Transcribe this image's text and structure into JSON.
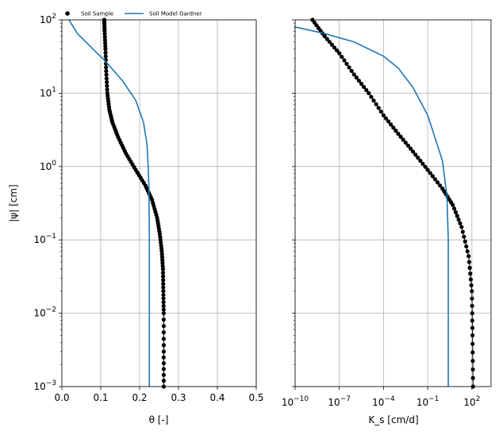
{
  "chart_data": [
    {
      "type": "line",
      "panel": "left",
      "xlabel": "θ [-]",
      "ylabel": "|ψ| [cm]",
      "xscale": "linear",
      "yscale": "log",
      "xlim": [
        0.0,
        0.5
      ],
      "ylim": [
        0.001,
        100
      ],
      "xticks": [
        "0.0",
        "0.1",
        "0.2",
        "0.3",
        "0.4",
        "0.5"
      ],
      "yticks": [
        "10^-3",
        "10^-2",
        "10^-1",
        "10^0",
        "10^1",
        "10^2"
      ],
      "grid": true,
      "legend": {
        "placement": "top, above plot",
        "entries": [
          {
            "label": "Soil Sample",
            "marker": "circle",
            "color": "#000000"
          },
          {
            "label": "Soil Model Gardner",
            "marker": "line",
            "color": "#1f77b4"
          }
        ]
      },
      "series": [
        {
          "name": "Soil Sample",
          "style": "black dots connected",
          "color": "#000000",
          "points": [
            [
              0.262,
              0.001
            ],
            [
              0.262,
              0.003
            ],
            [
              0.262,
              0.01
            ],
            [
              0.261,
              0.02
            ],
            [
              0.26,
              0.04
            ],
            [
              0.257,
              0.07
            ],
            [
              0.252,
              0.12
            ],
            [
              0.245,
              0.2
            ],
            [
              0.232,
              0.35
            ],
            [
              0.215,
              0.55
            ],
            [
              0.19,
              0.9
            ],
            [
              0.165,
              1.5
            ],
            [
              0.145,
              2.5
            ],
            [
              0.13,
              4.0
            ],
            [
              0.122,
              6.0
            ],
            [
              0.117,
              10
            ],
            [
              0.114,
              20
            ],
            [
              0.112,
              40
            ],
            [
              0.11,
              70
            ],
            [
              0.109,
              100
            ]
          ]
        },
        {
          "name": "Soil Model Gardner",
          "style": "line",
          "color": "#1f77b4",
          "points": [
            [
              0.225,
              0.001
            ],
            [
              0.225,
              0.1
            ],
            [
              0.224,
              0.5
            ],
            [
              0.222,
              1.0
            ],
            [
              0.219,
              2.0
            ],
            [
              0.21,
              4.0
            ],
            [
              0.19,
              8.0
            ],
            [
              0.155,
              15
            ],
            [
              0.11,
              28
            ],
            [
              0.07,
              45
            ],
            [
              0.04,
              65
            ],
            [
              0.018,
              100
            ]
          ]
        }
      ]
    },
    {
      "type": "line",
      "panel": "right",
      "xlabel": "K_s [cm/d]",
      "xscale": "log",
      "yscale": "log",
      "xlim": [
        1e-10,
        2000
      ],
      "ylim": [
        0.001,
        100
      ],
      "xticks": [
        "10^-10",
        "10^-7",
        "10^-4",
        "10^-1",
        "10^2"
      ],
      "grid": true,
      "series": [
        {
          "name": "Soil Sample",
          "style": "black dots connected",
          "color": "#000000",
          "points": [
            [
              1.5e-09,
              100
            ],
            [
              1e-08,
              60
            ],
            [
              1e-07,
              35
            ],
            [
              1e-06,
              18
            ],
            [
              1e-05,
              10
            ],
            [
              0.0001,
              5
            ],
            [
              0.001,
              2.8
            ],
            [
              0.01,
              1.6
            ],
            [
              0.1,
              0.9
            ],
            [
              1,
              0.5
            ],
            [
              5,
              0.3
            ],
            [
              20,
              0.15
            ],
            [
              60,
              0.06
            ],
            [
              100,
              0.02
            ],
            [
              110,
              0.005
            ],
            [
              120,
              0.001
            ]
          ]
        },
        {
          "name": "Soil Model Gardner",
          "style": "line",
          "color": "#1f77b4",
          "points": [
            [
              1e-10,
              80
            ],
            [
              1e-08,
              65
            ],
            [
              1e-06,
              50
            ],
            [
              0.0001,
              32
            ],
            [
              0.001,
              22
            ],
            [
              0.01,
              12
            ],
            [
              0.1,
              5
            ],
            [
              1,
              1.2
            ],
            [
              2,
              0.4
            ],
            [
              2.5,
              0.1
            ],
            [
              2.5,
              0.001
            ]
          ]
        }
      ]
    }
  ]
}
